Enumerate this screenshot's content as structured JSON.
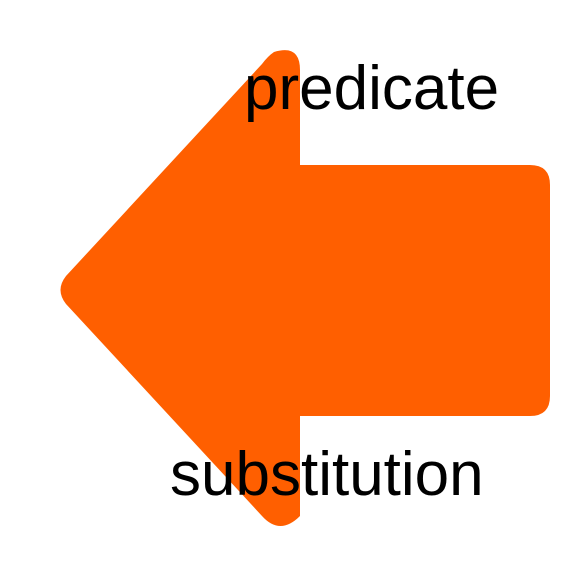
{
  "arrow": {
    "direction": "left",
    "color": "#FF5F00",
    "icon": "left-arrow-icon"
  },
  "labels": {
    "top": "predicate",
    "bottom": "substitution"
  }
}
